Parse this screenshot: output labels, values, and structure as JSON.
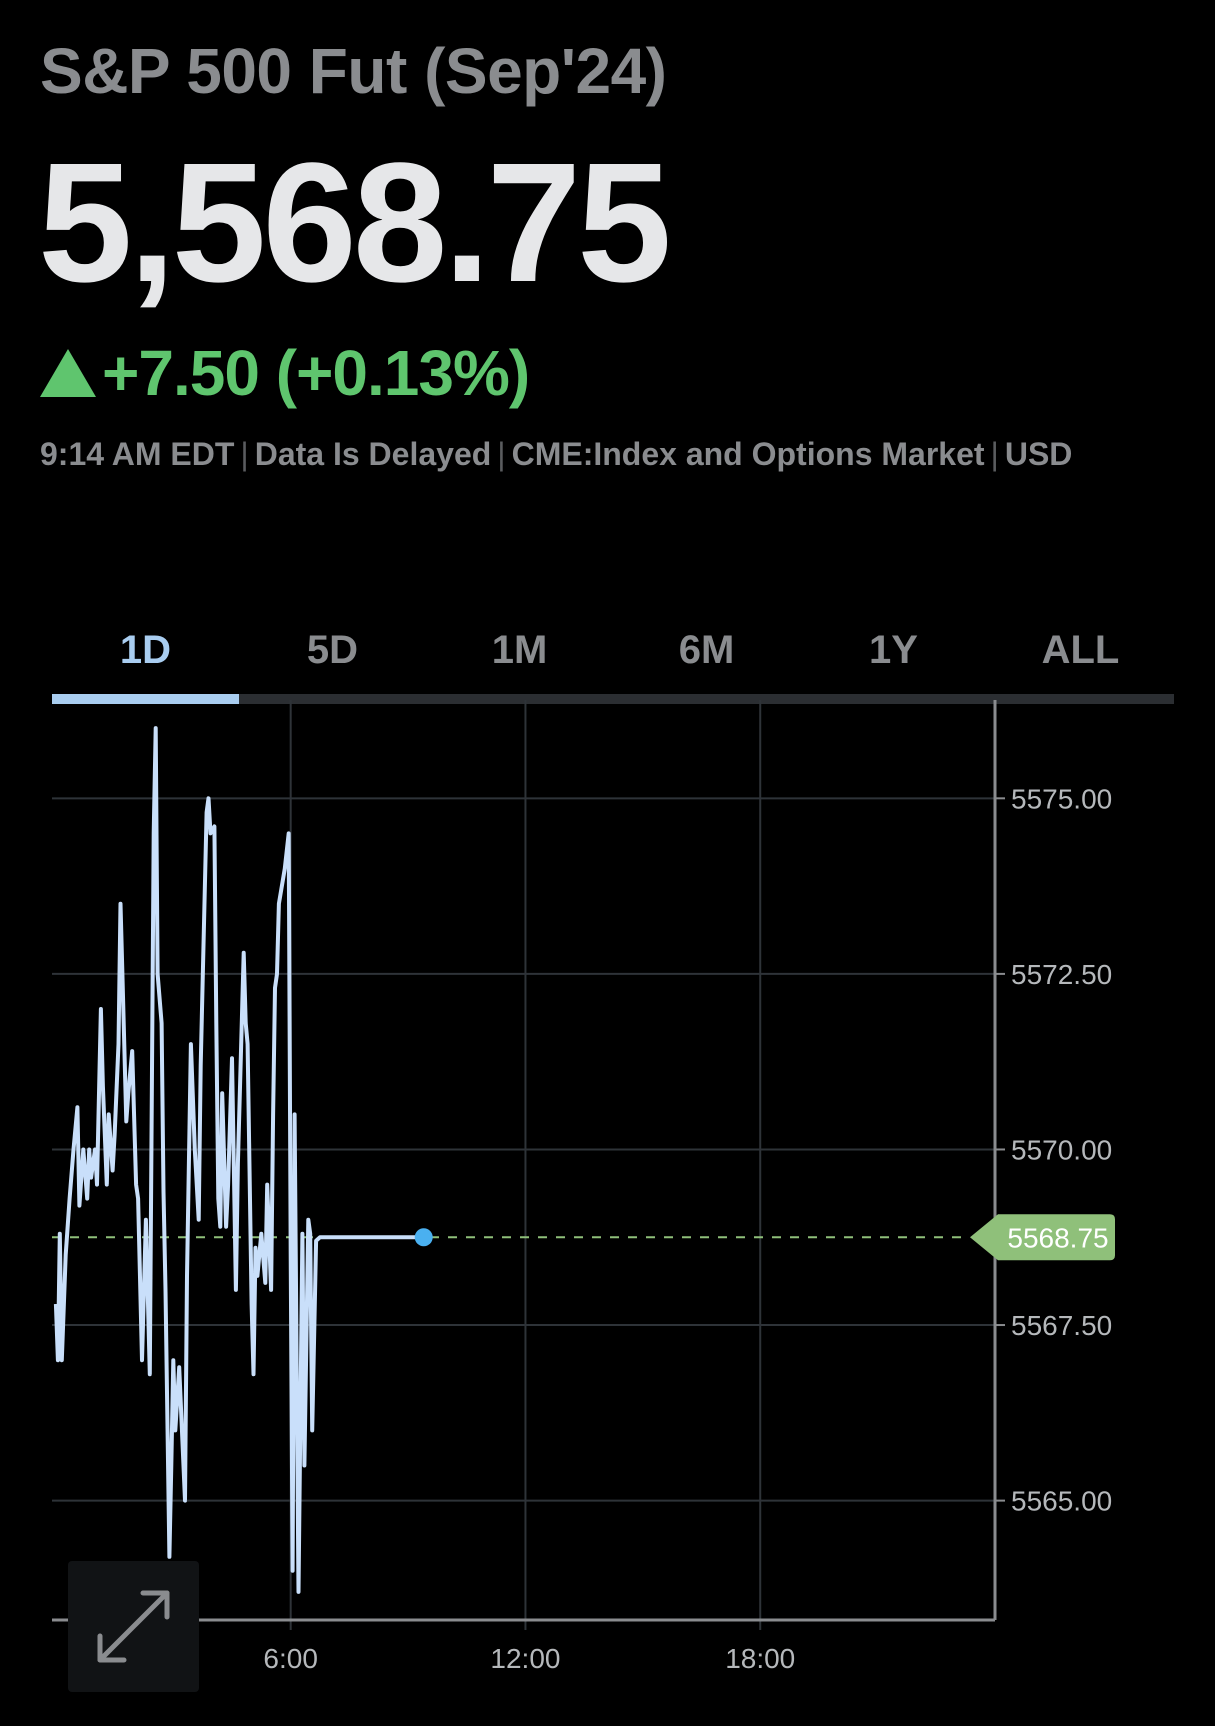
{
  "header": {
    "title": "S&P 500 Fut (Sep'24)",
    "price": "5,568.75",
    "change": "+7.50 (+0.13%)",
    "direction": "up",
    "meta": [
      "9:14 AM EDT",
      "Data Is Delayed",
      "CME:Index and Options Market",
      "USD"
    ]
  },
  "tabs": {
    "items": [
      "1D",
      "5D",
      "1M",
      "6M",
      "1Y",
      "ALL"
    ],
    "active": "1D"
  },
  "colors": {
    "line": "#c9dffa",
    "positive": "#5fc56e",
    "last_dot": "#4ab0f0",
    "grid": "#2e3338",
    "label_bg": "#8fc07a"
  },
  "expand": {
    "icon": "expand-arrows-icon"
  },
  "chart_data": {
    "type": "line",
    "x_axis": {
      "ticks": [
        "6:00",
        "12:00",
        "18:00"
      ],
      "tick_values": [
        6,
        12,
        18
      ],
      "range": [
        -0.1,
        24
      ]
    },
    "y_axis": {
      "ticks": [
        "5575.00",
        "5572.50",
        "5570.00",
        "5567.50",
        "5565.00"
      ],
      "tick_values": [
        5575,
        5572.5,
        5570,
        5567.5,
        5565
      ],
      "range": [
        5563.3,
        5576.4
      ]
    },
    "last_value": 5568.75,
    "last_label": "5568.75",
    "grid": true,
    "series": [
      {
        "x": [
          0.0,
          0.05,
          0.1,
          0.15,
          0.25,
          0.35,
          0.45,
          0.55,
          0.6,
          0.7,
          0.8,
          0.85,
          0.9,
          1.0,
          1.05,
          1.1,
          1.15,
          1.2,
          1.3,
          1.35,
          1.45,
          1.5,
          1.6,
          1.65,
          1.7,
          1.8,
          1.85,
          1.95,
          2.05,
          2.1,
          2.2,
          2.3,
          2.4,
          2.5,
          2.55,
          2.6,
          2.7,
          2.75,
          2.8,
          2.9,
          2.95,
          3.0,
          3.05,
          3.15,
          3.3,
          3.35,
          3.45,
          3.55,
          3.65,
          3.7,
          3.85,
          3.9,
          3.95,
          4.05,
          4.1,
          4.15,
          4.2,
          4.25,
          4.35,
          4.4,
          4.5,
          4.6,
          4.65,
          4.8,
          4.85,
          4.9,
          5.0,
          5.05,
          5.1,
          5.15,
          5.25,
          5.35,
          5.4,
          5.5,
          5.55,
          5.6,
          5.65,
          5.7,
          5.85,
          5.95,
          6.0,
          6.05,
          6.1,
          6.15,
          6.2,
          6.3,
          6.35,
          6.45,
          6.5,
          6.55,
          6.65,
          6.75,
          6.8,
          6.9,
          6.95,
          7.0,
          7.05,
          7.1,
          7.15,
          7.2,
          7.3,
          7.35,
          7.4,
          7.5,
          7.6,
          7.7,
          7.75,
          7.85,
          7.9,
          7.95,
          8.05,
          8.15,
          8.2,
          8.25,
          8.35,
          8.45,
          8.5,
          8.6,
          8.7,
          8.8,
          8.85,
          8.9,
          9.0,
          9.1,
          9.2,
          9.25,
          9.35,
          9.4
        ],
        "values": [
          5567.8,
          5567.0,
          5568.8,
          5567.0,
          5568.5,
          5569.3,
          5570.0,
          5570.6,
          5569.2,
          5570.0,
          5569.3,
          5570.0,
          5569.6,
          5570.0,
          5569.5,
          5570.8,
          5572.0,
          5570.9,
          5569.5,
          5570.5,
          5569.7,
          5570.2,
          5571.5,
          5573.5,
          5572.5,
          5570.4,
          5570.8,
          5571.4,
          5569.5,
          5569.3,
          5567.0,
          5569.0,
          5566.8,
          5574.5,
          5576.0,
          5572.5,
          5571.8,
          5569.4,
          5568.0,
          5564.2,
          5565.5,
          5567.0,
          5566.0,
          5566.9,
          5565.0,
          5568.2,
          5571.5,
          5570.0,
          5569.0,
          5571.2,
          5574.8,
          5575.0,
          5574.5,
          5574.6,
          5571.8,
          5569.3,
          5568.9,
          5570.8,
          5568.9,
          5569.5,
          5571.3,
          5568.0,
          5569.8,
          5572.8,
          5571.8,
          5571.5,
          5567.8,
          5566.8,
          5568.6,
          5568.2,
          5568.8,
          5568.1,
          5569.5,
          5568.0,
          5570.5,
          5572.3,
          5572.5,
          5573.5,
          5574.0,
          5574.5,
          5568.5,
          5564.0,
          5570.5,
          5567.0,
          5563.7,
          5568.8,
          5565.5,
          5569.0,
          5568.8,
          5566.0,
          5568.7,
          5568.75,
          5568.75,
          5568.75,
          5568.75,
          5568.75,
          5568.75,
          5568.75,
          5568.75,
          5568.75,
          5568.75,
          5568.75,
          5568.75,
          5568.75,
          5568.75,
          5568.75,
          5568.75,
          5568.75,
          5568.75,
          5568.75,
          5568.75,
          5568.75,
          5568.75,
          5568.75,
          5568.75,
          5568.75,
          5568.75,
          5568.75,
          5568.75,
          5568.75,
          5568.75,
          5568.75,
          5568.75,
          5568.75,
          5568.75,
          5568.75,
          5568.75,
          5568.75
        ]
      }
    ]
  }
}
